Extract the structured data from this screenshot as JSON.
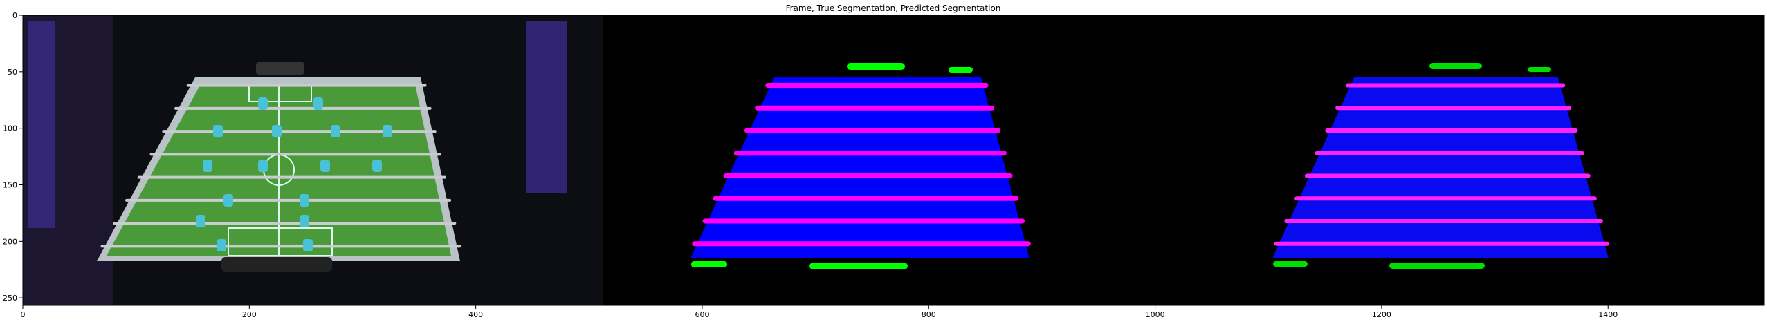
{
  "figure": {
    "title": "Frame, True Segmentation, Predicted Segmentation",
    "x_ticks": [
      "0",
      "200",
      "400",
      "600",
      "800",
      "1000",
      "1200",
      "1400"
    ],
    "y_ticks": [
      "0",
      "50",
      "100",
      "150",
      "200",
      "250"
    ]
  },
  "colors": {
    "background": "#000000",
    "table_field": "#0000ff",
    "rod_lines": "#ff00ff",
    "goal_regions": "#00ff00",
    "photo_floor": "#4a8a3a"
  },
  "panels": [
    {
      "name": "Frame",
      "content": "foosball table photo"
    },
    {
      "name": "True Segmentation",
      "content": "segmentation mask"
    },
    {
      "name": "Predicted Segmentation",
      "content": "segmentation mask"
    }
  ]
}
